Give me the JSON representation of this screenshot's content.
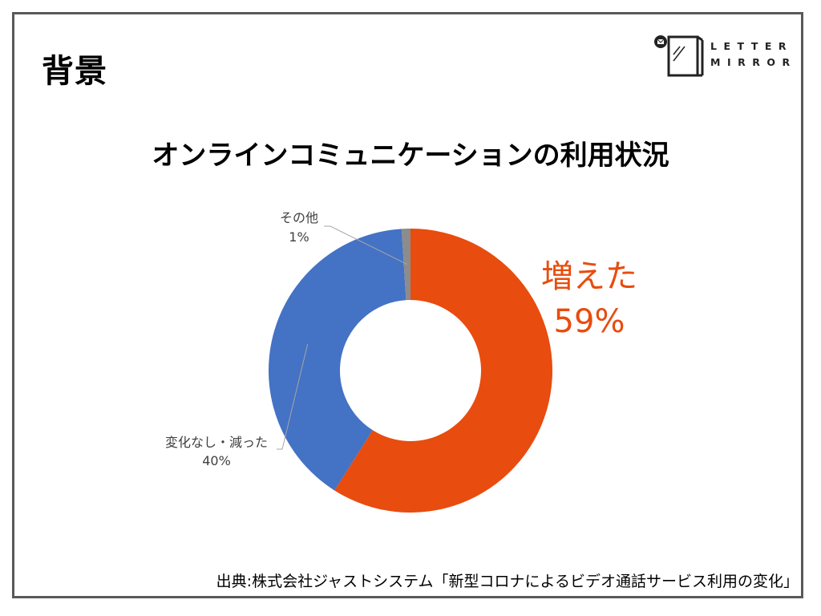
{
  "slide": {
    "section_title": "背景",
    "logo_text_line1": "LETTER",
    "logo_text_line2": "MIRROR",
    "source": "出典:株式会社ジャストシステム「新型コロナによるビデオ通話サービス利用の変化」"
  },
  "colors": {
    "increased": "#E84C0E",
    "unchanged": "#4472C4",
    "other": "#8C8C8C",
    "frame": "#595959"
  },
  "chart_data": {
    "type": "pie",
    "title": "オンラインコミュニケーションの利用状況",
    "variant": "donut",
    "slices": [
      {
        "label": "増えた",
        "value": 59,
        "value_label": "59%"
      },
      {
        "label": "変化なし・減った",
        "value": 40,
        "value_label": "40%"
      },
      {
        "label": "その他",
        "value": 1,
        "value_label": "1%"
      }
    ]
  }
}
